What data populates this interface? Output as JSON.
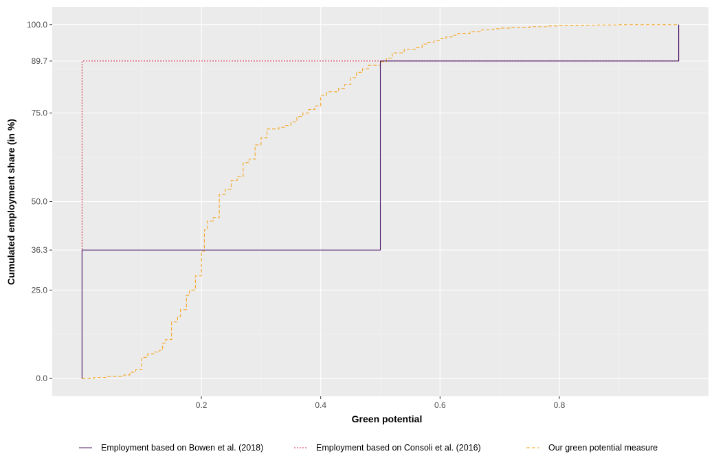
{
  "chart_data": {
    "type": "line",
    "step": true,
    "xlabel": "Green potential",
    "ylabel": "Cumulated employment share (in %)",
    "xlim": [
      -0.05,
      1.05
    ],
    "ylim": [
      -5,
      105
    ],
    "x_ticks": [
      0.2,
      0.4,
      0.6,
      0.8
    ],
    "x_tick_labels": [
      "0.2",
      "0.4",
      "0.6",
      "0.8"
    ],
    "x_minor_gridlines": [
      0.1,
      0.3,
      0.5,
      0.7,
      0.9
    ],
    "y_ticks": [
      0,
      25,
      36.3,
      50,
      75,
      89.7,
      100
    ],
    "y_tick_labels": [
      "0.0",
      "25.0",
      "36.3",
      "50.0",
      "75.0",
      "89.7",
      "100.0"
    ],
    "y_minor_gridlines": [
      12.5,
      62.5,
      87.5
    ],
    "grid": true,
    "panel_background": "#ebebeb",
    "legend_position": "bottom",
    "series": [
      {
        "name": "Employment based on Bowen et al. (2018)",
        "color": "#4b1a6b",
        "dash": "solid",
        "x": [
          0,
          0,
          0.5,
          0.5,
          1.0,
          1.0
        ],
        "y": [
          0,
          36.3,
          36.3,
          89.7,
          89.7,
          100
        ]
      },
      {
        "name": "Employment based on Consoli et al. (2016)",
        "color": "#d62a4c",
        "dash": "dotted",
        "x": [
          0,
          0,
          1.0,
          1.0
        ],
        "y": [
          0,
          89.7,
          89.7,
          100
        ]
      },
      {
        "name": "Our green potential measure",
        "color": "#f5a623",
        "dash": "dashed",
        "x": [
          0,
          0.02,
          0.04,
          0.07,
          0.08,
          0.09,
          0.1,
          0.11,
          0.12,
          0.13,
          0.135,
          0.14,
          0.15,
          0.16,
          0.165,
          0.175,
          0.18,
          0.19,
          0.2,
          0.205,
          0.21,
          0.22,
          0.23,
          0.24,
          0.25,
          0.26,
          0.27,
          0.28,
          0.29,
          0.3,
          0.31,
          0.33,
          0.34,
          0.35,
          0.36,
          0.37,
          0.38,
          0.39,
          0.4,
          0.41,
          0.43,
          0.44,
          0.45,
          0.46,
          0.47,
          0.48,
          0.5,
          0.51,
          0.52,
          0.54,
          0.56,
          0.57,
          0.58,
          0.59,
          0.6,
          0.61,
          0.62,
          0.63,
          0.65,
          0.67,
          0.69,
          0.7,
          0.72,
          0.75,
          0.78,
          0.8,
          0.83,
          0.86,
          0.9,
          1.0,
          1.0
        ],
        "y": [
          0,
          0.3,
          0.6,
          1.0,
          1.8,
          2.5,
          6.0,
          7.0,
          7.5,
          8.0,
          10.0,
          11.0,
          16.0,
          17.5,
          19.5,
          23.5,
          25.0,
          29.0,
          36.0,
          42.0,
          44.5,
          45.5,
          52.0,
          53.5,
          56.0,
          57.0,
          61.0,
          62.0,
          66.0,
          68.0,
          70.5,
          71.0,
          71.5,
          72.5,
          74.0,
          75.0,
          76.0,
          77.0,
          80.0,
          81.0,
          82.0,
          83.0,
          85.0,
          86.5,
          87.5,
          88.5,
          89.5,
          90.5,
          92.0,
          93.0,
          93.5,
          94.5,
          95.0,
          95.5,
          96.0,
          96.5,
          97.0,
          97.5,
          98.0,
          98.5,
          98.8,
          99.0,
          99.2,
          99.4,
          99.6,
          99.7,
          99.8,
          99.9,
          100.0,
          100.0,
          100.0
        ]
      }
    ]
  }
}
